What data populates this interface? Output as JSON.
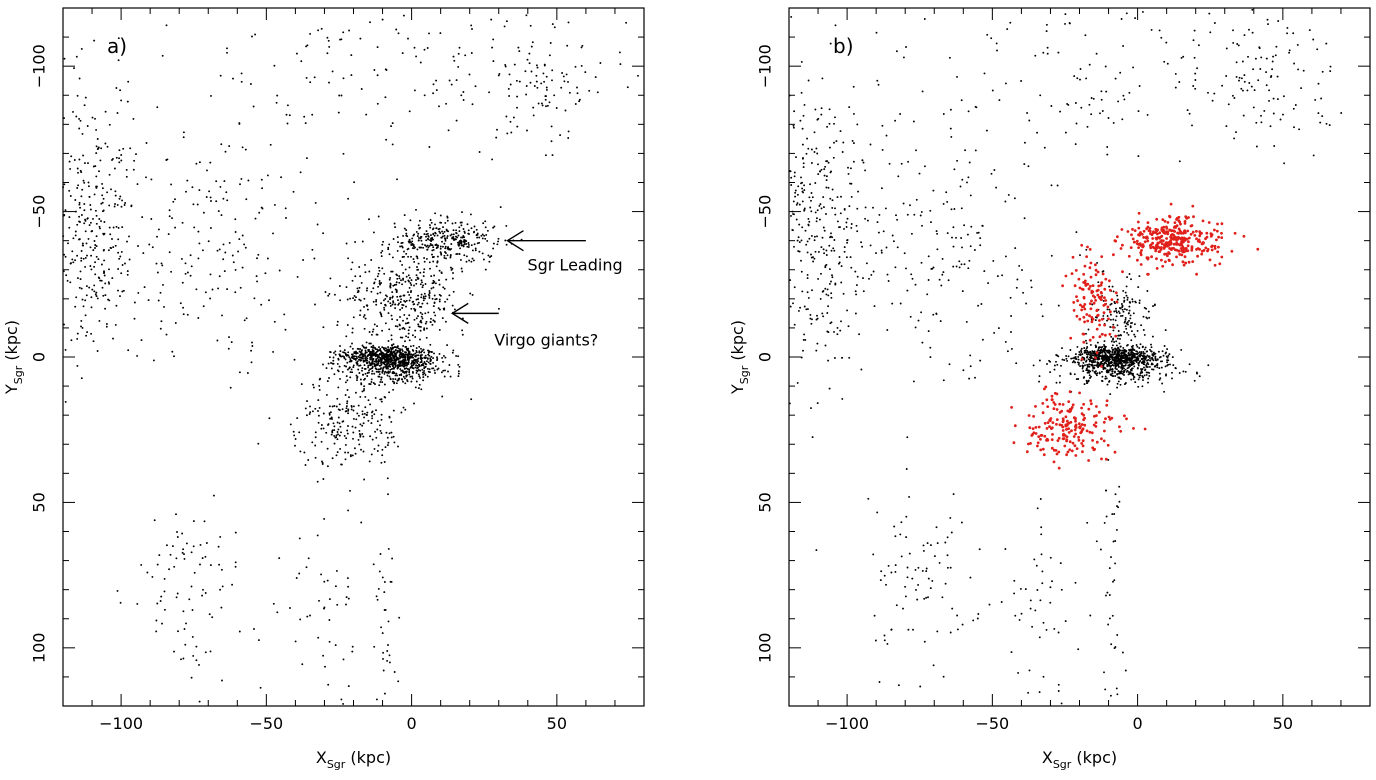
{
  "chart_data": [
    {
      "panel_label": "a)",
      "type": "scatter",
      "xlabel": {
        "main": "X",
        "sub": "Sgr",
        "unit": " (kpc)"
      },
      "ylabel": {
        "main": "Y",
        "sub": "Sgr",
        "unit": " (kpc)"
      },
      "xlim": [
        -120,
        80
      ],
      "ylim": [
        120,
        -120
      ],
      "y_axis_inverted": true,
      "x_ticks": [
        -100,
        -50,
        0,
        50
      ],
      "x_tick_labels": [
        "−100",
        "−50",
        "0",
        "50"
      ],
      "y_ticks": [
        -100,
        -50,
        0,
        50,
        100
      ],
      "y_tick_labels": [
        "−100",
        "−50",
        "0",
        "50",
        "100"
      ],
      "series": [
        {
          "color": "#000000",
          "points_approx": 2600,
          "groups": [
            {
              "region": "core",
              "cx": -8,
              "cy": 0,
              "sx": 8,
              "sy": 2,
              "n": 700
            },
            {
              "region": "core-lower",
              "cx": -6,
              "cy": 5,
              "sx": 10,
              "sy": 2.5,
              "n": 250
            },
            {
              "region": "upper stream",
              "cx": -2,
              "cy": -20,
              "sx": 10,
              "sy": 8,
              "n": 380
            },
            {
              "region": "sgr leading",
              "cx": 12,
              "cy": -40,
              "sx": 9,
              "sy": 4,
              "n": 320
            },
            {
              "region": "lower clump",
              "cx": -22,
              "cy": 23,
              "sx": 9,
              "sy": 8,
              "n": 230
            },
            {
              "region": "left group",
              "cx": -110,
              "cy": -45,
              "sx": 8,
              "sy": 22,
              "n": 320
            },
            {
              "region": "left diffuse",
              "cx": -70,
              "cy": -40,
              "sx": 25,
              "sy": 25,
              "n": 230
            },
            {
              "region": "top arc",
              "cx": 0,
              "cy": -100,
              "sx": 45,
              "sy": 15,
              "n": 170
            },
            {
              "region": "right arc",
              "cx": 45,
              "cy": -95,
              "sx": 12,
              "sy": 10,
              "n": 80
            },
            {
              "region": "bottom-left trail",
              "cx": -75,
              "cy": 80,
              "sx": 12,
              "sy": 15,
              "n": 90
            },
            {
              "region": "bottom vertical",
              "cx": -9,
              "cy": 85,
              "sx": 2,
              "sy": 25,
              "n": 40
            },
            {
              "region": "bottom diagonal",
              "cx": -30,
              "cy": 85,
              "sx": 8,
              "sy": 18,
              "n": 50
            }
          ]
        }
      ],
      "annotations": [
        {
          "text": "Sgr Leading",
          "arrow_from": [
            60,
            -40
          ],
          "arrow_to": [
            33,
            -40
          ]
        },
        {
          "text": "Virgo giants?",
          "arrow_from": [
            30,
            -15
          ],
          "arrow_to": [
            14,
            -15
          ]
        }
      ]
    },
    {
      "panel_label": "b)",
      "type": "scatter",
      "xlabel": {
        "main": "X",
        "sub": "Sgr",
        "unit": " (kpc)"
      },
      "ylabel": {
        "main": "Y",
        "sub": "Sgr",
        "unit": " (kpc)"
      },
      "xlim": [
        -120,
        80
      ],
      "ylim": [
        120,
        -120
      ],
      "y_axis_inverted": true,
      "x_ticks": [
        -100,
        -50,
        0,
        50
      ],
      "x_tick_labels": [
        "−100",
        "−50",
        "0",
        "50"
      ],
      "y_ticks": [
        -100,
        -50,
        0,
        50,
        100
      ],
      "y_tick_labels": [
        "−100",
        "−50",
        "0",
        "50",
        "100"
      ],
      "series": [
        {
          "color": "#000000",
          "points_approx": 2000,
          "groups": [
            {
              "region": "core",
              "cx": -8,
              "cy": 0,
              "sx": 8,
              "sy": 2,
              "n": 700
            },
            {
              "region": "core-lower",
              "cx": -6,
              "cy": 5,
              "sx": 10,
              "sy": 2.5,
              "n": 250
            },
            {
              "region": "upper stream",
              "cx": -5,
              "cy": -15,
              "sx": 5,
              "sy": 6,
              "n": 150
            },
            {
              "region": "left group",
              "cx": -110,
              "cy": -45,
              "sx": 8,
              "sy": 22,
              "n": 320
            },
            {
              "region": "left diffuse",
              "cx": -70,
              "cy": -40,
              "sx": 25,
              "sy": 25,
              "n": 230
            },
            {
              "region": "top arc",
              "cx": 0,
              "cy": -100,
              "sx": 45,
              "sy": 15,
              "n": 170
            },
            {
              "region": "right arc",
              "cx": 45,
              "cy": -95,
              "sx": 12,
              "sy": 10,
              "n": 80
            },
            {
              "region": "bottom-left trail",
              "cx": -75,
              "cy": 80,
              "sx": 12,
              "sy": 15,
              "n": 90
            },
            {
              "region": "bottom vertical",
              "cx": -9,
              "cy": 85,
              "sx": 2,
              "sy": 25,
              "n": 40
            },
            {
              "region": "bottom diagonal",
              "cx": -30,
              "cy": 85,
              "sx": 8,
              "sy": 18,
              "n": 50
            }
          ]
        },
        {
          "color": "#e0201b",
          "points_approx": 640,
          "groups": [
            {
              "region": "sgr leading",
              "cx": 12,
              "cy": -40,
              "sx": 8,
              "sy": 4,
              "n": 330
            },
            {
              "region": "leading tail",
              "cx": -15,
              "cy": -20,
              "sx": 4,
              "sy": 9,
              "n": 120
            },
            {
              "region": "lower clump",
              "cx": -24,
              "cy": 24,
              "sx": 9,
              "sy": 6,
              "n": 190
            }
          ]
        }
      ]
    }
  ]
}
